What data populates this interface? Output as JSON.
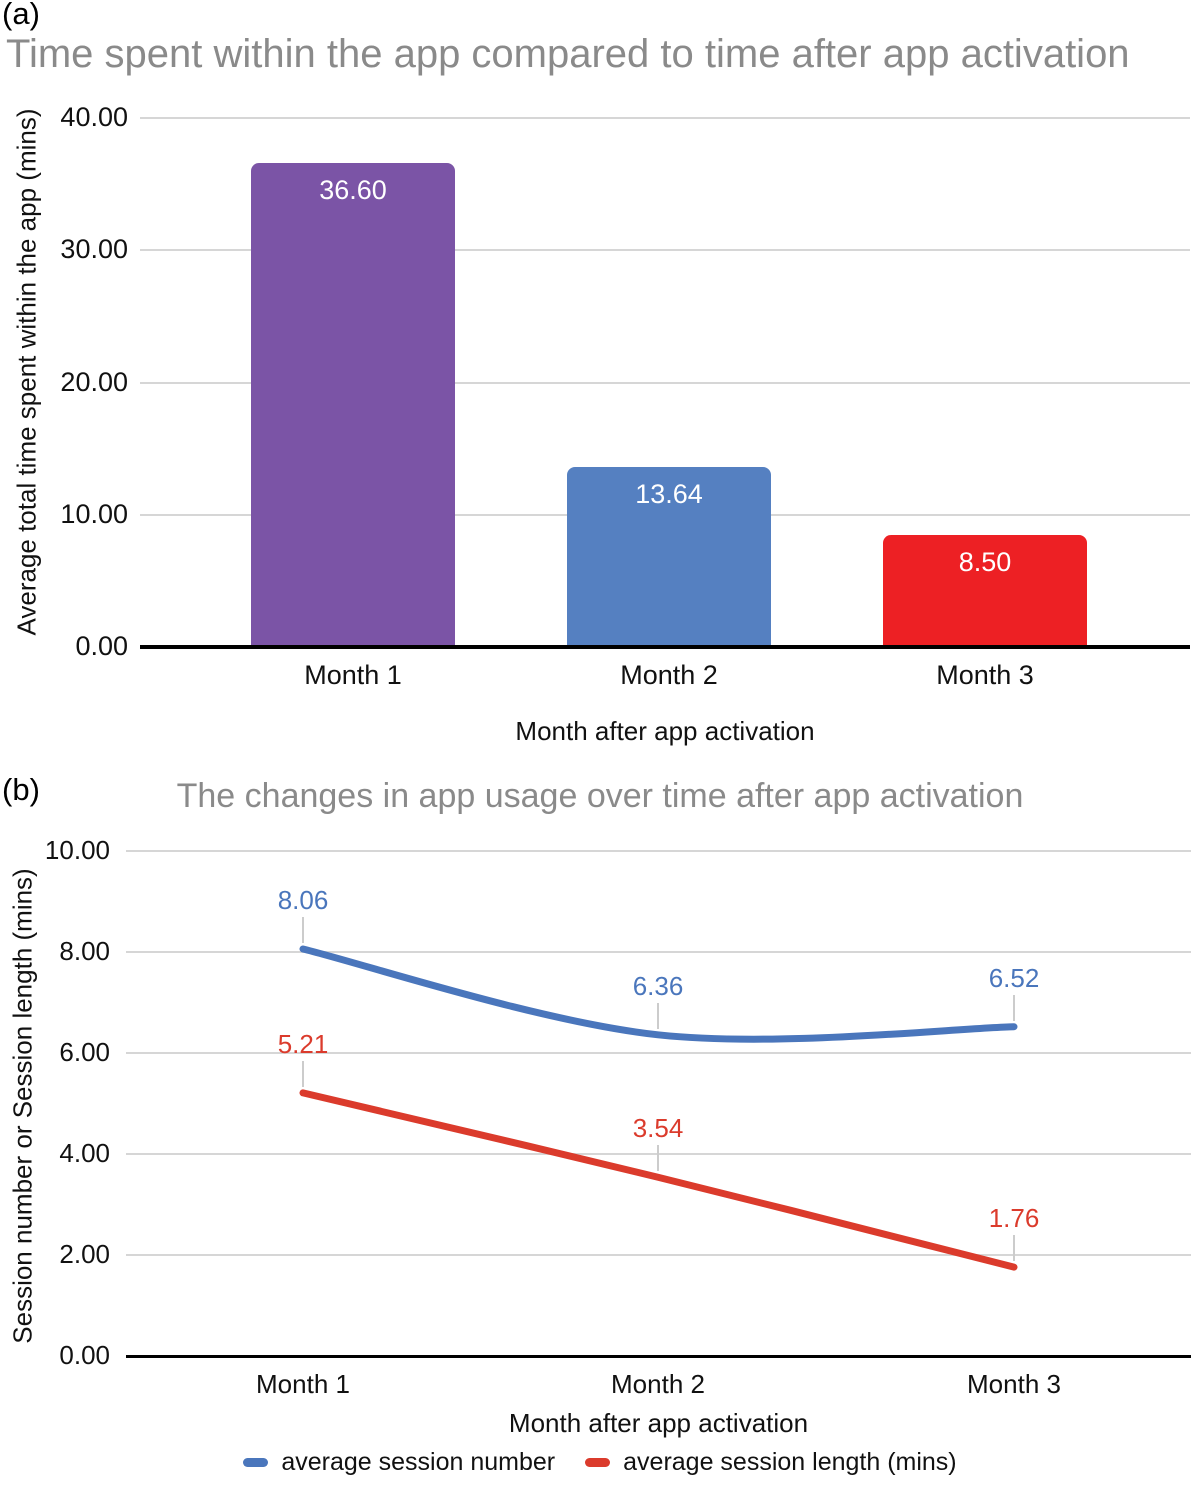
{
  "chart_data": [
    {
      "type": "bar",
      "panel_label": "(a)",
      "title": "Time spent within the app compared to time after app activation",
      "categories": [
        "Month 1",
        "Month 2",
        "Month 3"
      ],
      "values": [
        36.6,
        13.64,
        8.5
      ],
      "value_labels": [
        "36.60",
        "13.64",
        "8.50"
      ],
      "bar_colors": [
        "#7b54a6",
        "#5580c1",
        "#ed2024"
      ],
      "xlabel": "Month after app activation",
      "ylabel": "Average total time spent within the app (mins)",
      "yticks": [
        "40.00",
        "30.00",
        "20.00",
        "10.00",
        "0.00"
      ],
      "ylim": [
        0,
        40
      ],
      "grid": true,
      "legend": "none"
    },
    {
      "type": "line",
      "panel_label": "(b)",
      "title": "The changes in app usage over time after app activation",
      "categories": [
        "Month 1",
        "Month 2",
        "Month 3"
      ],
      "series": [
        {
          "name": "average session number",
          "values": [
            8.06,
            6.36,
            6.52
          ],
          "value_labels": [
            "8.06",
            "6.36",
            "6.52"
          ],
          "color": "#4a76bc",
          "smooth": true
        },
        {
          "name": "average session length (mins)",
          "values": [
            5.21,
            3.54,
            1.76
          ],
          "value_labels": [
            "5.21",
            "3.54",
            "1.76"
          ],
          "color": "#db3b2c",
          "smooth": true
        }
      ],
      "xlabel": "Month after app activation",
      "ylabel": "Session number or Session length (mins)",
      "yticks": [
        "10.00",
        "8.00",
        "6.00",
        "4.00",
        "2.00",
        "0.00"
      ],
      "ylim": [
        0,
        10
      ],
      "grid": true,
      "legend_position": "bottom"
    }
  ]
}
